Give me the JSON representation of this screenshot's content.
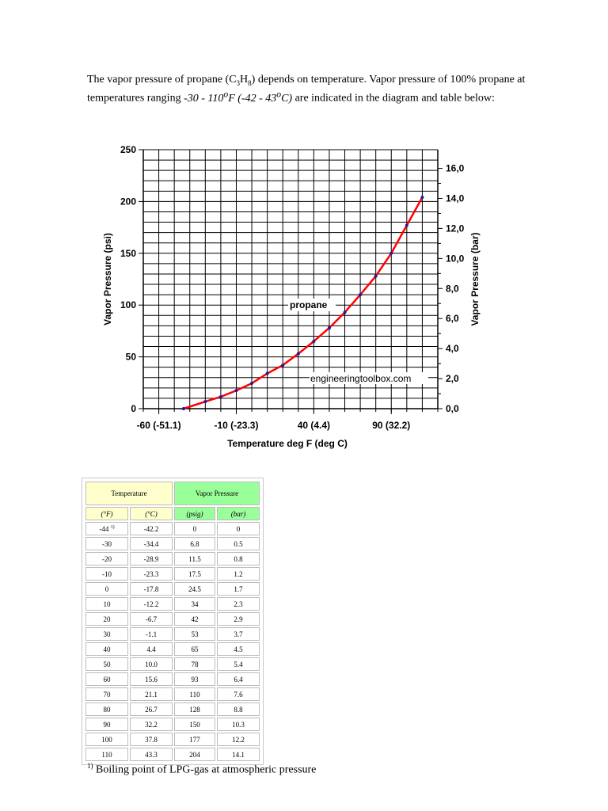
{
  "intro": {
    "p1": "The vapor pressure of propane (C",
    "sub1": "3",
    "p2": "H",
    "sub2": "8",
    "p3": ") depends on temperature. Vapor pressure of 100% propane at temperatures ranging ",
    "range": "-30 - 110",
    "deg1": "o",
    "f_part": "F (-42 - 43",
    "deg2": "o",
    "c_part": "C)",
    "p4": " are indicated in the diagram and table below:"
  },
  "chart_data": {
    "type": "line",
    "xlabel": "Temperature deg F (deg C)",
    "ylabel": "Vapor Pressure (psi)",
    "ylabel2": "Vapor Pressure (bar)",
    "xlim": [
      -70,
      120
    ],
    "ylim": [
      0,
      250
    ],
    "xticks": [
      -60,
      -10,
      40,
      90
    ],
    "xtick_labels": [
      "-60 (-51.1)",
      "-10 (-23.3)",
      "40 (4.4)",
      "90 (32.2)"
    ],
    "yticks": [
      0,
      50,
      100,
      150,
      200,
      250
    ],
    "ytick_labels": [
      "0",
      "50",
      "100",
      "150",
      "200",
      "250"
    ],
    "y2ticks": [
      0,
      2,
      4,
      6,
      8,
      10,
      12,
      14,
      16
    ],
    "y2tick_labels": [
      "0,0",
      "2,0",
      "4,0",
      "6,0",
      "8,0",
      "10,0",
      "12,0",
      "14,0",
      "16,0"
    ],
    "ylim2": [
      0,
      17.24
    ],
    "grid": true,
    "annotations": [
      "propane",
      "engineeringtoolbox.com"
    ],
    "series": [
      {
        "name": "propane",
        "color": "#ff0000",
        "marker_color": "#1a1aa8",
        "x": [
          -44,
          -30,
          -20,
          -10,
          0,
          10,
          20,
          30,
          40,
          50,
          60,
          70,
          80,
          90,
          100,
          110
        ],
        "y": [
          0,
          6.8,
          11.5,
          17.5,
          24.5,
          34,
          42,
          53,
          65,
          78,
          93,
          110,
          128,
          150,
          177,
          204
        ]
      }
    ]
  },
  "table": {
    "header_temp": "Temperature",
    "header_vap": "Vapor Pressure",
    "units": [
      "(°F)",
      "(°C)",
      "(psig)",
      "(bar)"
    ],
    "footnote_marker": "1)",
    "rows": [
      [
        "-44",
        "-42.2",
        "0",
        "0"
      ],
      [
        "-30",
        "-34.4",
        "6.8",
        "0.5"
      ],
      [
        "-20",
        "-28.9",
        "11.5",
        "0.8"
      ],
      [
        "-10",
        "-23.3",
        "17.5",
        "1.2"
      ],
      [
        "0",
        "-17.8",
        "24.5",
        "1.7"
      ],
      [
        "10",
        "-12.2",
        "34",
        "2.3"
      ],
      [
        "20",
        "-6.7",
        "42",
        "2.9"
      ],
      [
        "30",
        "-1.1",
        "53",
        "3.7"
      ],
      [
        "40",
        "4.4",
        "65",
        "4.5"
      ],
      [
        "50",
        "10.0",
        "78",
        "5.4"
      ],
      [
        "60",
        "15.6",
        "93",
        "6.4"
      ],
      [
        "70",
        "21.1",
        "110",
        "7.6"
      ],
      [
        "80",
        "26.7",
        "128",
        "8.8"
      ],
      [
        "90",
        "32.2",
        "150",
        "10.3"
      ],
      [
        "100",
        "37.8",
        "177",
        "12.2"
      ],
      [
        "110",
        "43.3",
        "204",
        "14.1"
      ]
    ]
  },
  "footnote": {
    "marker": "1)",
    "text": " Boiling point of LPG-gas at atmospheric pressure"
  }
}
